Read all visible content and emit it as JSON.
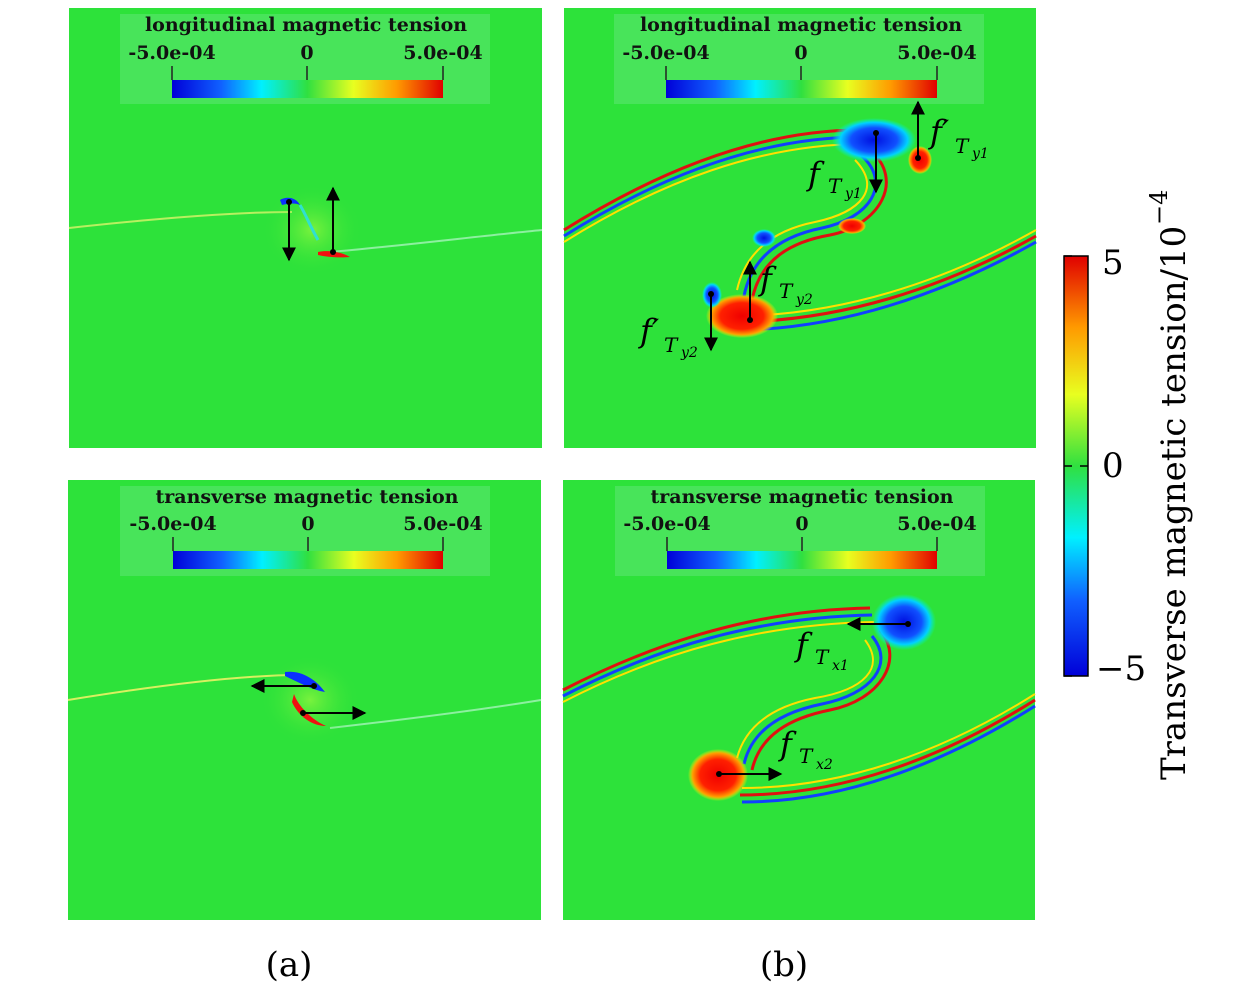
{
  "figure": {
    "panels": [
      {
        "id": "a-top",
        "title": "longitudinal magnetic tension",
        "cbar": {
          "min": "-5.0e-04",
          "mid": "0",
          "max": "5.0e-04"
        }
      },
      {
        "id": "b-top",
        "title": "longitudinal magnetic tension",
        "cbar": {
          "min": "-5.0e-04",
          "mid": "0",
          "max": "5.0e-04"
        }
      },
      {
        "id": "a-bottom",
        "title": "transverse magnetic tension",
        "cbar": {
          "min": "-5.0e-04",
          "mid": "0",
          "max": "5.0e-04"
        }
      },
      {
        "id": "b-bottom",
        "title": "transverse magnetic tension",
        "cbar": {
          "min": "-5.0e-04",
          "mid": "0",
          "max": "5.0e-04"
        }
      }
    ],
    "subfigure_labels": {
      "a": "(a)",
      "b": "(b)"
    },
    "colorbar": {
      "title": "Transverse magnetic tension/10",
      "title_exp": "−4",
      "ticks": {
        "top": "5",
        "mid": "0",
        "bottom": "−5"
      },
      "range": [
        -5,
        5
      ],
      "colormap": [
        "#0000d8",
        "#00a0ff",
        "#00ffff",
        "#00e000",
        "#ffff00",
        "#ff8000",
        "#e00000"
      ]
    },
    "field_color": "#2de23a",
    "annotations": {
      "fTy1": {
        "main": "f",
        "sub": "T",
        "subsub": "y1"
      },
      "fTy1p": {
        "main": "f′",
        "sub": "T",
        "subsub": "y1"
      },
      "fTy2": {
        "main": "f",
        "sub": "T",
        "subsub": "y2"
      },
      "fTy2p": {
        "main": "f′",
        "sub": "T",
        "subsub": "y2"
      },
      "fTx1": {
        "main": "f",
        "sub": "T",
        "subsub": "x1"
      },
      "fTx2": {
        "main": "f",
        "sub": "T",
        "subsub": "x2"
      }
    }
  }
}
